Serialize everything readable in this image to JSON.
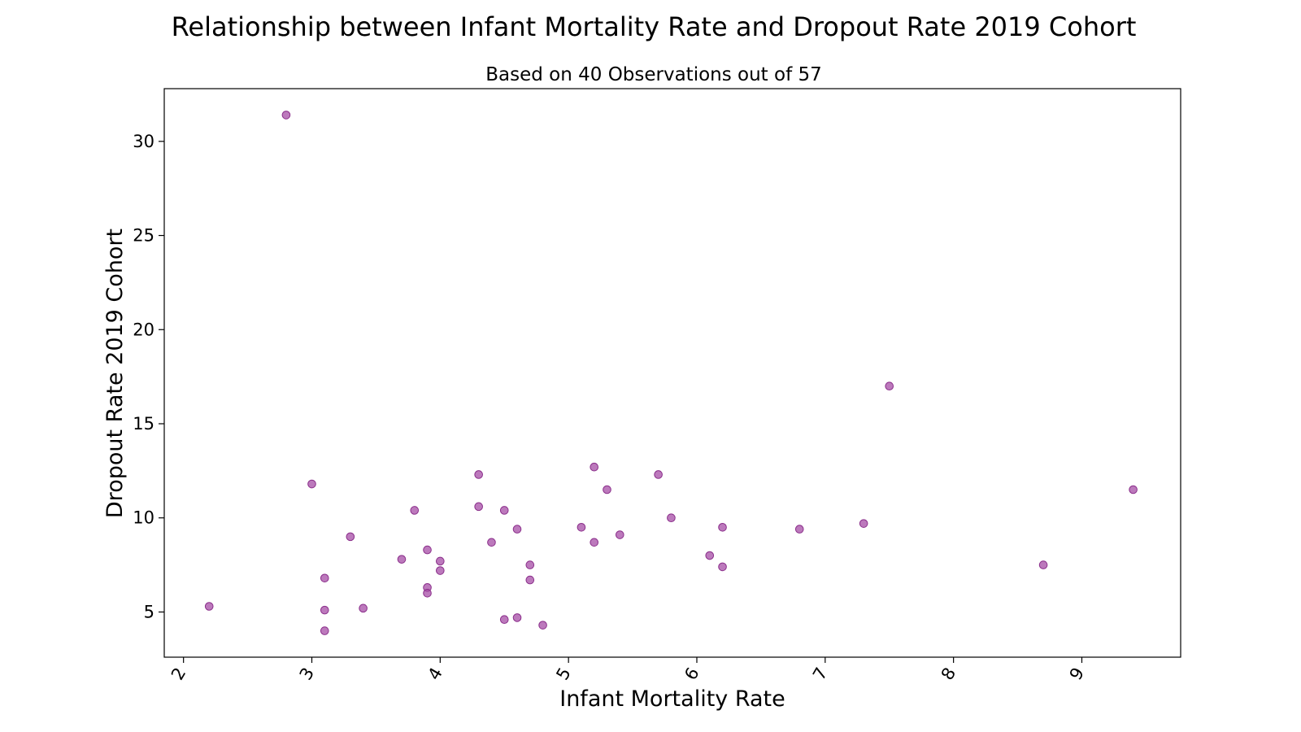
{
  "chart_data": {
    "type": "scatter",
    "title": "Relationship between Infant Mortality Rate and Dropout Rate 2019 Cohort",
    "subtitle": "Based on 40 Observations out of 57",
    "xlabel": "Infant Mortality Rate",
    "ylabel": "Dropout Rate 2019 Cohort",
    "xlim": [
      1.85,
      9.77
    ],
    "ylim": [
      2.6,
      32.8
    ],
    "xticks": [
      2,
      3,
      4,
      5,
      6,
      7,
      8,
      9
    ],
    "yticks": [
      5,
      10,
      15,
      20,
      25,
      30
    ],
    "grid": false,
    "color": "#a64ca6",
    "points": [
      {
        "x": 2.2,
        "y": 5.3
      },
      {
        "x": 2.8,
        "y": 31.4
      },
      {
        "x": 3.0,
        "y": 11.8
      },
      {
        "x": 3.1,
        "y": 6.8
      },
      {
        "x": 3.1,
        "y": 5.1
      },
      {
        "x": 3.1,
        "y": 4.0
      },
      {
        "x": 3.3,
        "y": 9.0
      },
      {
        "x": 3.4,
        "y": 5.2
      },
      {
        "x": 3.7,
        "y": 7.8
      },
      {
        "x": 3.8,
        "y": 10.4
      },
      {
        "x": 3.9,
        "y": 8.3
      },
      {
        "x": 3.9,
        "y": 6.3
      },
      {
        "x": 3.9,
        "y": 6.0
      },
      {
        "x": 4.0,
        "y": 7.7
      },
      {
        "x": 4.0,
        "y": 7.2
      },
      {
        "x": 4.3,
        "y": 12.3
      },
      {
        "x": 4.3,
        "y": 10.6
      },
      {
        "x": 4.4,
        "y": 8.7
      },
      {
        "x": 4.5,
        "y": 10.4
      },
      {
        "x": 4.5,
        "y": 4.6
      },
      {
        "x": 4.6,
        "y": 9.4
      },
      {
        "x": 4.6,
        "y": 4.7
      },
      {
        "x": 4.7,
        "y": 7.5
      },
      {
        "x": 4.7,
        "y": 6.7
      },
      {
        "x": 4.8,
        "y": 4.3
      },
      {
        "x": 5.1,
        "y": 9.5
      },
      {
        "x": 5.2,
        "y": 12.7
      },
      {
        "x": 5.2,
        "y": 8.7
      },
      {
        "x": 5.3,
        "y": 11.5
      },
      {
        "x": 5.4,
        "y": 9.1
      },
      {
        "x": 5.7,
        "y": 12.3
      },
      {
        "x": 5.8,
        "y": 10.0
      },
      {
        "x": 6.1,
        "y": 8.0
      },
      {
        "x": 6.2,
        "y": 9.5
      },
      {
        "x": 6.2,
        "y": 7.4
      },
      {
        "x": 6.8,
        "y": 9.4
      },
      {
        "x": 7.3,
        "y": 9.7
      },
      {
        "x": 7.5,
        "y": 17.0
      },
      {
        "x": 8.7,
        "y": 7.5
      },
      {
        "x": 9.4,
        "y": 11.5
      }
    ]
  }
}
